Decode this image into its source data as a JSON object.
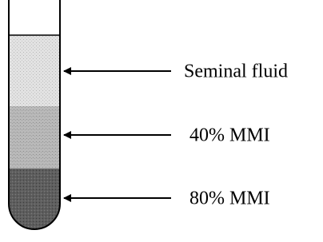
{
  "layers": [
    {
      "label": "Seminal fluid"
    },
    {
      "label": "40% MMI"
    },
    {
      "label": "80% MMI"
    }
  ]
}
